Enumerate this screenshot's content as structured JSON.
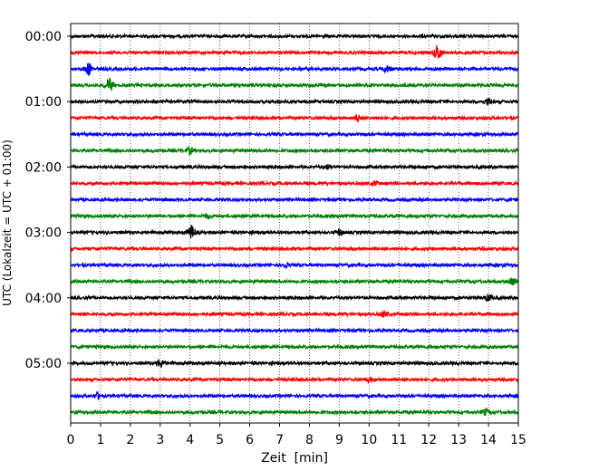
{
  "chart_data": {
    "type": "line",
    "title": "",
    "xlabel": "Zeit  [min]",
    "ylabel": "UTC (Lokalzeit = UTC + 01:00)",
    "xlim": [
      0,
      15
    ],
    "x_ticks": [
      "0",
      "1",
      "2",
      "3",
      "4",
      "5",
      "6",
      "7",
      "8",
      "9",
      "10",
      "11",
      "12",
      "13",
      "14",
      "15"
    ],
    "y_tick_labels": [
      "00:00",
      "01:00",
      "02:00",
      "03:00",
      "04:00",
      "05:00"
    ],
    "row_interval_minutes": 15,
    "grid": "vertical dotted at each minute",
    "line_colors": [
      "#000000",
      "#ff0000",
      "#0000ff",
      "#008000"
    ],
    "rows": [
      {
        "start": "00:00",
        "color": "#000000",
        "events": []
      },
      {
        "start": "00:15",
        "color": "#ff0000",
        "events": [
          {
            "t": 12.3,
            "amp": 8
          }
        ]
      },
      {
        "start": "00:30",
        "color": "#0000ff",
        "events": [
          {
            "t": 0.6,
            "amp": 6
          },
          {
            "t": 10.6,
            "amp": 3
          }
        ]
      },
      {
        "start": "00:45",
        "color": "#008000",
        "events": [
          {
            "t": 1.3,
            "amp": 7
          }
        ]
      },
      {
        "start": "01:00",
        "color": "#000000",
        "events": [
          {
            "t": 14.0,
            "amp": 3
          }
        ]
      },
      {
        "start": "01:15",
        "color": "#ff0000",
        "events": [
          {
            "t": 9.6,
            "amp": 3
          }
        ]
      },
      {
        "start": "01:30",
        "color": "#0000ff",
        "events": []
      },
      {
        "start": "01:45",
        "color": "#008000",
        "events": [
          {
            "t": 4.0,
            "amp": 3
          }
        ]
      },
      {
        "start": "02:00",
        "color": "#000000",
        "events": [
          {
            "t": 8.6,
            "amp": 2
          }
        ]
      },
      {
        "start": "02:15",
        "color": "#ff0000",
        "events": [
          {
            "t": 10.2,
            "amp": 2
          }
        ]
      },
      {
        "start": "02:30",
        "color": "#0000ff",
        "events": []
      },
      {
        "start": "02:45",
        "color": "#008000",
        "events": [
          {
            "t": 4.6,
            "amp": 2
          }
        ]
      },
      {
        "start": "03:00",
        "color": "#000000",
        "events": [
          {
            "t": 4.05,
            "amp": 7
          },
          {
            "t": 9.0,
            "amp": 3
          }
        ]
      },
      {
        "start": "03:15",
        "color": "#ff0000",
        "events": []
      },
      {
        "start": "03:30",
        "color": "#0000ff",
        "events": [
          {
            "t": 7.2,
            "amp": 2
          }
        ]
      },
      {
        "start": "03:45",
        "color": "#008000",
        "events": [
          {
            "t": 14.8,
            "amp": 3
          }
        ]
      },
      {
        "start": "04:00",
        "color": "#000000",
        "events": [
          {
            "t": 14.0,
            "amp": 3
          }
        ]
      },
      {
        "start": "04:15",
        "color": "#ff0000",
        "events": [
          {
            "t": 10.5,
            "amp": 3
          }
        ]
      },
      {
        "start": "04:30",
        "color": "#0000ff",
        "events": []
      },
      {
        "start": "04:45",
        "color": "#008000",
        "events": []
      },
      {
        "start": "05:00",
        "color": "#000000",
        "events": [
          {
            "t": 3.0,
            "amp": 4
          }
        ]
      },
      {
        "start": "05:15",
        "color": "#ff0000",
        "events": [
          {
            "t": 10.0,
            "amp": 2
          }
        ]
      },
      {
        "start": "05:30",
        "color": "#0000ff",
        "events": [
          {
            "t": 0.9,
            "amp": 3
          }
        ]
      },
      {
        "start": "05:45",
        "color": "#008000",
        "events": [
          {
            "t": 13.9,
            "amp": 3
          }
        ]
      }
    ]
  }
}
